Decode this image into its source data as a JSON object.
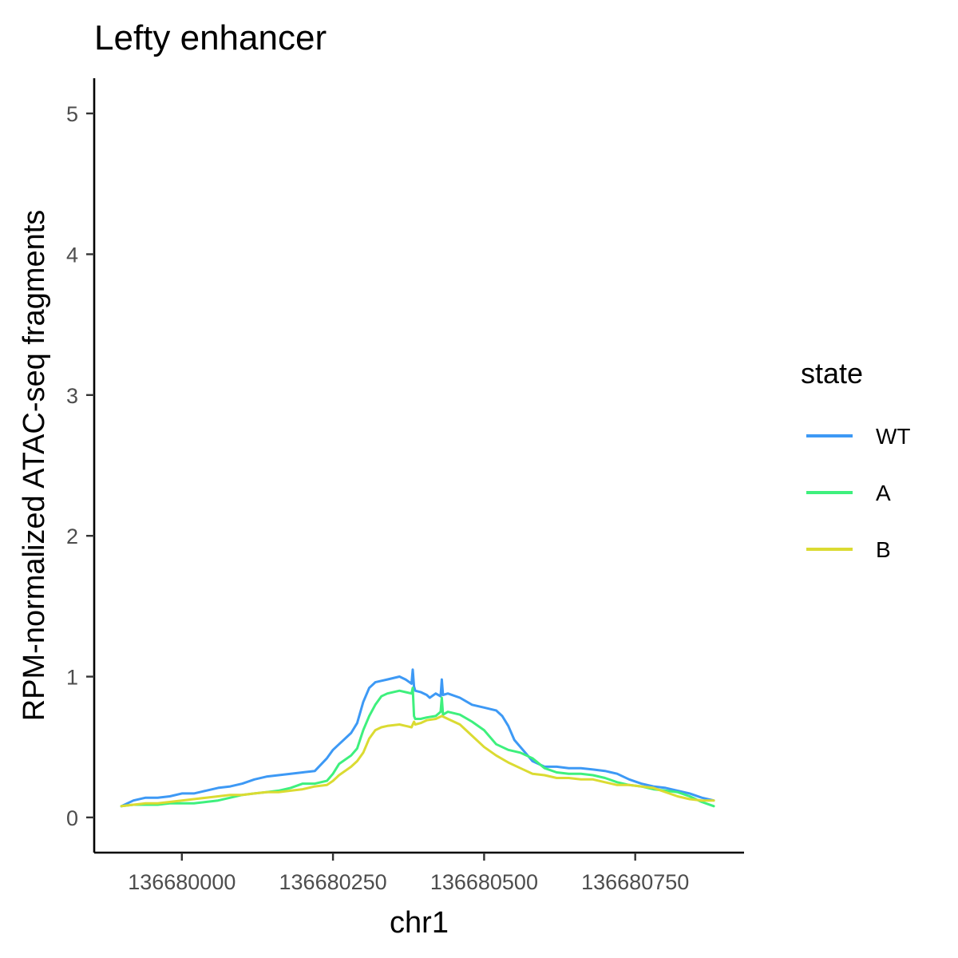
{
  "chart_data": {
    "type": "line",
    "title": "Lefty enhancer",
    "xlabel": "chr1",
    "ylabel": "RPM-normalized ATAC-seq fragments",
    "xlim": [
      136679855,
      136680930
    ],
    "ylim": [
      -0.25,
      5.25
    ],
    "x_ticks": [
      136680000,
      136680250,
      136680500,
      136680750
    ],
    "x_tick_labels": [
      "136680000",
      "136680250",
      "136680500",
      "136680750"
    ],
    "y_ticks": [
      0,
      1,
      2,
      3,
      4,
      5
    ],
    "y_tick_labels": [
      "0",
      "1",
      "2",
      "3",
      "4",
      "5"
    ],
    "grid": false,
    "legend": {
      "title": "state",
      "position": "right"
    },
    "series": [
      {
        "name": "WT",
        "color": "#3d99f5",
        "x": [
          136679900,
          136679920,
          136679940,
          136679960,
          136679980,
          136680000,
          136680020,
          136680040,
          136680060,
          136680080,
          136680100,
          136680120,
          136680140,
          136680160,
          136680180,
          136680200,
          136680220,
          136680240,
          136680250,
          136680260,
          136680280,
          136680290,
          136680300,
          136680310,
          136680320,
          136680330,
          136680340,
          136680360,
          136680370,
          136680380,
          136680382,
          136680384,
          136680386,
          136680395,
          136680405,
          136680410,
          136680420,
          136680428,
          136680430,
          136680432,
          136680440,
          136680460,
          136680480,
          136680500,
          136680520,
          136680530,
          136680540,
          136680550,
          136680580,
          136680600,
          136680620,
          136680640,
          136680660,
          136680680,
          136680700,
          136680720,
          136680740,
          136680760,
          136680780,
          136680800,
          136680820,
          136680840,
          136680860,
          136680880
        ],
        "values": [
          0.08,
          0.12,
          0.14,
          0.14,
          0.15,
          0.17,
          0.17,
          0.19,
          0.21,
          0.22,
          0.24,
          0.27,
          0.29,
          0.3,
          0.31,
          0.32,
          0.33,
          0.42,
          0.48,
          0.52,
          0.6,
          0.67,
          0.82,
          0.92,
          0.96,
          0.97,
          0.98,
          1.0,
          0.98,
          0.95,
          1.05,
          0.93,
          0.9,
          0.89,
          0.87,
          0.85,
          0.88,
          0.86,
          0.98,
          0.87,
          0.88,
          0.85,
          0.8,
          0.78,
          0.76,
          0.72,
          0.65,
          0.55,
          0.4,
          0.36,
          0.36,
          0.35,
          0.35,
          0.34,
          0.33,
          0.31,
          0.27,
          0.24,
          0.22,
          0.21,
          0.19,
          0.17,
          0.14,
          0.12
        ]
      },
      {
        "name": "A",
        "color": "#3ef07d",
        "x": [
          136679900,
          136679920,
          136679940,
          136679960,
          136679980,
          136680000,
          136680020,
          136680040,
          136680060,
          136680080,
          136680100,
          136680120,
          136680140,
          136680160,
          136680180,
          136680200,
          136680220,
          136680240,
          136680250,
          136680260,
          136680280,
          136680290,
          136680300,
          136680310,
          136680320,
          136680330,
          136680340,
          136680360,
          136680380,
          136680382,
          136680384,
          136680386,
          136680395,
          136680405,
          136680420,
          136680428,
          136680430,
          136680432,
          136680440,
          136680460,
          136680480,
          136680500,
          136680520,
          136680540,
          136680560,
          136680580,
          136680600,
          136680620,
          136680640,
          136680660,
          136680680,
          136680700,
          136680720,
          136680740,
          136680760,
          136680780,
          136680800,
          136680820,
          136680840,
          136680860,
          136680880
        ],
        "values": [
          0.08,
          0.09,
          0.09,
          0.09,
          0.1,
          0.1,
          0.1,
          0.11,
          0.12,
          0.14,
          0.16,
          0.17,
          0.18,
          0.19,
          0.21,
          0.24,
          0.24,
          0.26,
          0.31,
          0.38,
          0.44,
          0.49,
          0.62,
          0.72,
          0.8,
          0.86,
          0.88,
          0.9,
          0.88,
          0.92,
          0.72,
          0.7,
          0.7,
          0.71,
          0.72,
          0.75,
          0.85,
          0.73,
          0.75,
          0.73,
          0.68,
          0.62,
          0.52,
          0.48,
          0.46,
          0.42,
          0.35,
          0.32,
          0.31,
          0.31,
          0.3,
          0.28,
          0.25,
          0.23,
          0.22,
          0.2,
          0.19,
          0.18,
          0.15,
          0.11,
          0.08
        ]
      },
      {
        "name": "B",
        "color": "#dbdb32",
        "x": [
          136679900,
          136679920,
          136679940,
          136679960,
          136679980,
          136680000,
          136680020,
          136680040,
          136680060,
          136680080,
          136680100,
          136680120,
          136680140,
          136680160,
          136680180,
          136680200,
          136680220,
          136680240,
          136680250,
          136680260,
          136680280,
          136680290,
          136680300,
          136680310,
          136680320,
          136680330,
          136680340,
          136680360,
          136680380,
          136680382,
          136680384,
          136680386,
          136680395,
          136680405,
          136680420,
          136680430,
          136680440,
          136680460,
          136680480,
          136680500,
          136680520,
          136680540,
          136680560,
          136680580,
          136680600,
          136680620,
          136680640,
          136680660,
          136680680,
          136680700,
          136680720,
          136680740,
          136680760,
          136680780,
          136680800,
          136680820,
          136680840,
          136680860,
          136680880
        ],
        "values": [
          0.08,
          0.09,
          0.1,
          0.1,
          0.11,
          0.12,
          0.13,
          0.14,
          0.15,
          0.16,
          0.16,
          0.17,
          0.18,
          0.18,
          0.19,
          0.2,
          0.22,
          0.23,
          0.26,
          0.3,
          0.36,
          0.4,
          0.46,
          0.56,
          0.62,
          0.64,
          0.65,
          0.66,
          0.64,
          0.66,
          0.68,
          0.66,
          0.67,
          0.69,
          0.7,
          0.72,
          0.7,
          0.66,
          0.58,
          0.5,
          0.44,
          0.39,
          0.35,
          0.31,
          0.3,
          0.28,
          0.28,
          0.27,
          0.27,
          0.25,
          0.23,
          0.23,
          0.22,
          0.21,
          0.18,
          0.15,
          0.13,
          0.12,
          0.12
        ]
      }
    ]
  }
}
